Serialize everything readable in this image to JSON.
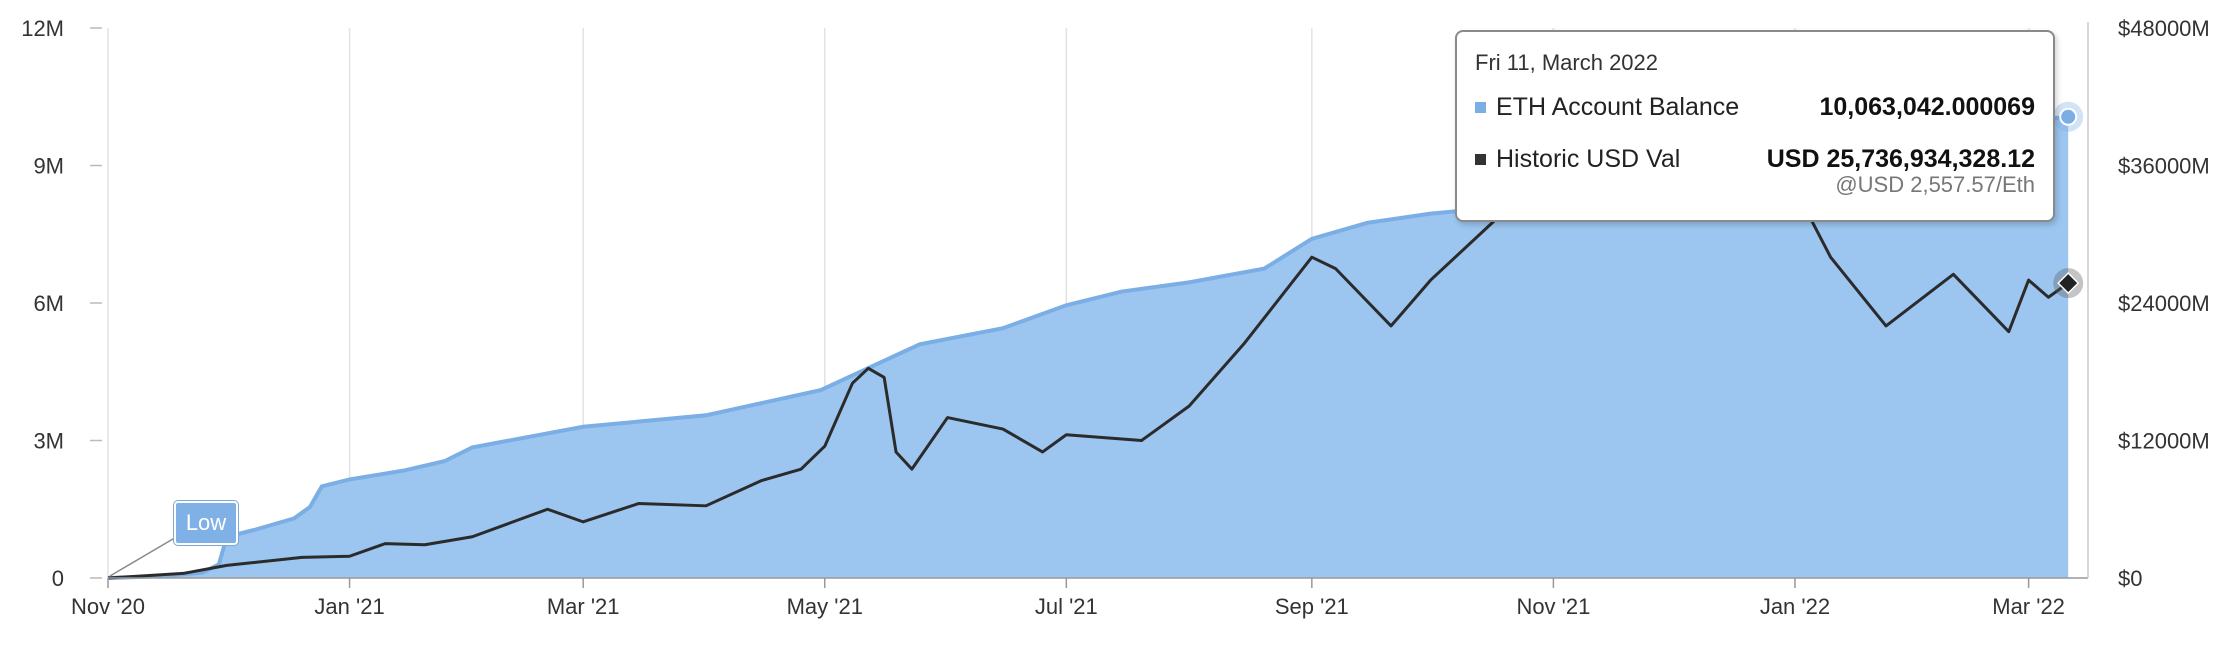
{
  "chart_data": {
    "type": "area",
    "x_axis": {
      "min": "2020-11-01",
      "max": "2022-03-16",
      "tick_labels": [
        "Nov '20",
        "Jan '21",
        "Mar '21",
        "May '21",
        "Jul '21",
        "Sep '21",
        "Nov '21",
        "Jan '22",
        "Mar '22"
      ],
      "tick_dates": [
        "2020-11-01",
        "2021-01-01",
        "2021-03-01",
        "2021-05-01",
        "2021-07-01",
        "2021-09-01",
        "2021-11-01",
        "2022-01-01",
        "2022-03-01"
      ]
    },
    "y_axis_left": {
      "min": 0,
      "max": 12000000,
      "tick_labels": [
        "0",
        "3M",
        "6M",
        "9M",
        "12M"
      ],
      "tick_values": [
        0,
        3000000,
        6000000,
        9000000,
        12000000
      ]
    },
    "y_axis_right": {
      "min": 0,
      "max": 48000000000,
      "tick_labels": [
        "$0",
        "$12000M",
        "$24000M",
        "$36000M",
        "$48000M"
      ],
      "tick_values": [
        0,
        12000000000,
        24000000000,
        36000000000,
        48000000000
      ]
    },
    "grid": {
      "vertical": true,
      "horizontal": false
    },
    "series": [
      {
        "name": "ETH Account Balance",
        "axis": "left",
        "color": "#9cc6f0",
        "line_color": "#7aaee4",
        "points": [
          [
            "2020-11-01",
            0
          ],
          [
            "2020-11-15",
            40000
          ],
          [
            "2020-11-25",
            120000
          ],
          [
            "2020-11-29",
            300000
          ],
          [
            "2020-12-01",
            900000
          ],
          [
            "2020-12-08",
            1050000
          ],
          [
            "2020-12-18",
            1300000
          ],
          [
            "2020-12-22",
            1550000
          ],
          [
            "2020-12-25",
            2000000
          ],
          [
            "2021-01-01",
            2150000
          ],
          [
            "2021-01-15",
            2350000
          ],
          [
            "2021-01-25",
            2550000
          ],
          [
            "2021-02-01",
            2850000
          ],
          [
            "2021-03-01",
            3300000
          ],
          [
            "2021-04-01",
            3550000
          ],
          [
            "2021-04-30",
            4100000
          ],
          [
            "2021-05-15",
            4700000
          ],
          [
            "2021-05-25",
            5100000
          ],
          [
            "2021-06-15",
            5450000
          ],
          [
            "2021-07-01",
            5950000
          ],
          [
            "2021-07-15",
            6250000
          ],
          [
            "2021-08-01",
            6450000
          ],
          [
            "2021-08-20",
            6750000
          ],
          [
            "2021-09-01",
            7400000
          ],
          [
            "2021-09-15",
            7750000
          ],
          [
            "2021-10-01",
            7950000
          ],
          [
            "2021-10-20",
            8100000
          ],
          [
            "2021-11-01",
            8400000
          ],
          [
            "2021-12-01",
            9000000
          ],
          [
            "2022-01-01",
            9500000
          ],
          [
            "2022-02-01",
            9750000
          ],
          [
            "2022-03-11",
            10063042
          ]
        ]
      },
      {
        "name": "Historic USD Val",
        "axis": "right",
        "color": "#2b2b2b",
        "points": [
          [
            "2020-11-01",
            0
          ],
          [
            "2020-11-20",
            400000000
          ],
          [
            "2020-12-01",
            1100000000
          ],
          [
            "2020-12-20",
            1800000000
          ],
          [
            "2021-01-01",
            1900000000
          ],
          [
            "2021-01-10",
            3000000000
          ],
          [
            "2021-01-20",
            2900000000
          ],
          [
            "2021-02-01",
            3600000000
          ],
          [
            "2021-02-20",
            6000000000
          ],
          [
            "2021-03-01",
            4900000000
          ],
          [
            "2021-03-15",
            6500000000
          ],
          [
            "2021-04-01",
            6300000000
          ],
          [
            "2021-04-15",
            8500000000
          ],
          [
            "2021-04-25",
            9500000000
          ],
          [
            "2021-05-01",
            11500000000
          ],
          [
            "2021-05-08",
            17000000000
          ],
          [
            "2021-05-12",
            18300000000
          ],
          [
            "2021-05-16",
            17500000000
          ],
          [
            "2021-05-19",
            11000000000
          ],
          [
            "2021-05-23",
            9500000000
          ],
          [
            "2021-06-01",
            14000000000
          ],
          [
            "2021-06-15",
            13000000000
          ],
          [
            "2021-06-25",
            11000000000
          ],
          [
            "2021-07-01",
            12500000000
          ],
          [
            "2021-07-20",
            12000000000
          ],
          [
            "2021-08-01",
            15000000000
          ],
          [
            "2021-08-15",
            20500000000
          ],
          [
            "2021-09-01",
            28000000000
          ],
          [
            "2021-09-07",
            27000000000
          ],
          [
            "2021-09-21",
            22000000000
          ],
          [
            "2021-10-01",
            26000000000
          ],
          [
            "2021-10-15",
            30500000000
          ],
          [
            "2021-11-01",
            36000000000
          ],
          [
            "2021-11-10",
            38000000000
          ],
          [
            "2021-12-01",
            35500000000
          ],
          [
            "2022-01-01",
            34000000000
          ],
          [
            "2022-01-10",
            28000000000
          ],
          [
            "2022-01-24",
            22000000000
          ],
          [
            "2022-02-10",
            26500000000
          ],
          [
            "2022-02-24",
            21500000000
          ],
          [
            "2022-03-01",
            26000000000
          ],
          [
            "2022-03-06",
            24500000000
          ],
          [
            "2022-03-11",
            25736934328.12
          ]
        ]
      }
    ],
    "tooltip": {
      "date": "Fri 11, March 2022",
      "rows": [
        {
          "name": "ETH Account Balance",
          "value": "10,063,042.000069",
          "color": "#7aaee4"
        },
        {
          "name": "Historic USD Val",
          "value": "USD 25,736,934,328.12",
          "sub": "@USD 2,557.57/Eth",
          "color": "#333333"
        }
      ]
    },
    "annotation": {
      "text": "Low",
      "date": "2020-11-01",
      "value": 0
    }
  }
}
